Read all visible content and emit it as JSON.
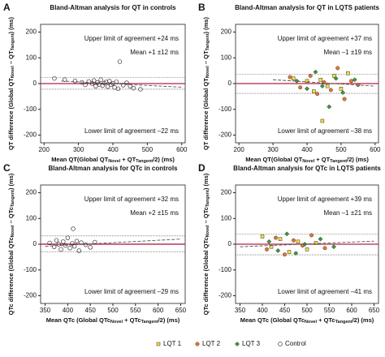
{
  "chart_data": [
    {
      "type": "scatter",
      "letter": "A",
      "title": "Bland-Altman analysis for QT in controls",
      "xlabel_parts": [
        {
          "text": "Mean QT(Global QT",
          "sub": false
        },
        {
          "text": "Novel",
          "sub": true
        },
        {
          "text": " + QT",
          "sub": false
        },
        {
          "text": "Tangent",
          "sub": true
        },
        {
          "text": "/2) (ms)",
          "sub": false
        }
      ],
      "ylabel_parts": [
        {
          "text": "QT difference (Global QT",
          "sub": false
        },
        {
          "text": "Novel",
          "sub": true
        },
        {
          "text": " – QT",
          "sub": false
        },
        {
          "text": "Tangent",
          "sub": true
        },
        {
          "text": ") (ms)",
          "sub": false
        }
      ],
      "xlim": [
        190,
        610
      ],
      "xticks": [
        200,
        300,
        400,
        500,
        600
      ],
      "ylim": [
        -230,
        230
      ],
      "yticks": [
        200,
        100,
        0,
        -100,
        -200
      ],
      "limits": {
        "upper": 24,
        "mean": 1,
        "lower": -22
      },
      "limit_labels": {
        "upper": "Upper limit of agreement +24 ms",
        "mean": "Mean +1 ±12 ms",
        "lower": "Lower limit of agreement –22 ms"
      },
      "regression": {
        "x": [
          250,
          600
        ],
        "y": [
          10,
          -14
        ]
      },
      "series": [
        {
          "name": "Control",
          "color": "#222222",
          "marker": "open-circle",
          "x": [
            230,
            260,
            290,
            310,
            320,
            330,
            340,
            345,
            350,
            355,
            360,
            365,
            370,
            375,
            380,
            385,
            390,
            395,
            400,
            405,
            410,
            415,
            420,
            430,
            440,
            450,
            460,
            480
          ],
          "values": [
            20,
            15,
            10,
            5,
            -5,
            8,
            0,
            12,
            -10,
            4,
            -3,
            15,
            -8,
            2,
            6,
            -12,
            10,
            -4,
            1,
            -15,
            7,
            -20,
            85,
            -6,
            3,
            -10,
            -18,
            -22
          ]
        }
      ]
    },
    {
      "type": "scatter",
      "letter": "B",
      "title": "Bland-Altman analysis for QT in LQTS patients",
      "xlabel_parts": [
        {
          "text": "Mean QT(Global QT",
          "sub": false
        },
        {
          "text": "Novel",
          "sub": true
        },
        {
          "text": " + QT",
          "sub": false
        },
        {
          "text": "Tangent",
          "sub": true
        },
        {
          "text": "/2) (ms)",
          "sub": false
        }
      ],
      "ylabel_parts": [
        {
          "text": "QT difference (Global QT",
          "sub": false
        },
        {
          "text": "Novel",
          "sub": true
        },
        {
          "text": " – QT",
          "sub": false
        },
        {
          "text": "Tangent",
          "sub": true
        },
        {
          "text": ") (ms)",
          "sub": false
        }
      ],
      "xlim": [
        190,
        610
      ],
      "xticks": [
        200,
        300,
        400,
        500,
        600
      ],
      "ylim": [
        -230,
        230
      ],
      "yticks": [
        200,
        100,
        0,
        -100,
        -200
      ],
      "limits": {
        "upper": 37,
        "mean": -1,
        "lower": -38
      },
      "limit_labels": {
        "upper": "Upper limit of agreement +37 ms",
        "mean": "Mean –1 ±19 ms",
        "lower": "Lower limit of agreement –38 ms"
      },
      "regression": {
        "x": [
          300,
          600
        ],
        "y": [
          15,
          -10
        ]
      },
      "series": [
        {
          "name": "LQT 1",
          "color": "#f2e23a",
          "marker": "square",
          "x": [
            360,
            400,
            420,
            440,
            445,
            460,
            480,
            500,
            520
          ],
          "values": [
            20,
            10,
            -30,
            15,
            -145,
            -10,
            30,
            -20,
            40
          ]
        },
        {
          "name": "LQT 2",
          "color": "#e8782a",
          "marker": "circle",
          "x": [
            350,
            380,
            410,
            430,
            450,
            470,
            490,
            510,
            530,
            550
          ],
          "values": [
            25,
            -15,
            30,
            -40,
            5,
            -25,
            60,
            -60,
            10,
            -5
          ]
        },
        {
          "name": "LQT 3",
          "color": "#3a9a3a",
          "marker": "diamond",
          "x": [
            370,
            400,
            425,
            445,
            465,
            485,
            505,
            540
          ],
          "values": [
            10,
            -20,
            45,
            -10,
            -90,
            20,
            -35,
            15
          ]
        }
      ]
    },
    {
      "type": "scatter",
      "letter": "C",
      "title": "Bland-Altman analysis for QTc in controls",
      "xlabel_parts": [
        {
          "text": "Mean QTc (Global QTc",
          "sub": false
        },
        {
          "text": "Novel",
          "sub": true
        },
        {
          "text": " + QTc",
          "sub": false
        },
        {
          "text": "Tangent",
          "sub": true
        },
        {
          "text": "/2) (ms)",
          "sub": false
        }
      ],
      "ylabel_parts": [
        {
          "text": "QTc difference (Global QTc",
          "sub": false
        },
        {
          "text": "Novel",
          "sub": true
        },
        {
          "text": " – QTc",
          "sub": false
        },
        {
          "text": "Tangent",
          "sub": true
        },
        {
          "text": ") (ms)",
          "sub": false
        }
      ],
      "xlim": [
        340,
        660
      ],
      "xticks": [
        350,
        400,
        450,
        500,
        550,
        600,
        650
      ],
      "ylim": [
        -230,
        230
      ],
      "yticks": [
        200,
        100,
        0,
        -100,
        -200
      ],
      "limits": {
        "upper": 32,
        "mean": 2,
        "lower": -29
      },
      "limit_labels": {
        "upper": "Upper limit of agreement +32 ms",
        "mean": "Mean +2 ±15 ms",
        "lower": "Lower limit of agreement –29 ms"
      },
      "regression": {
        "x": [
          350,
          650
        ],
        "y": [
          -8,
          20
        ]
      },
      "series": [
        {
          "name": "Control",
          "color": "#222222",
          "marker": "open-circle",
          "x": [
            360,
            370,
            375,
            380,
            385,
            390,
            395,
            400,
            405,
            410,
            412,
            415,
            420,
            425,
            430,
            440,
            450,
            460
          ],
          "values": [
            5,
            -10,
            15,
            0,
            -20,
            10,
            -5,
            25,
            -15,
            3,
            60,
            -8,
            12,
            -25,
            6,
            -2,
            -12,
            8
          ]
        }
      ]
    },
    {
      "type": "scatter",
      "letter": "D",
      "title": "Bland-Altman analysis for QTc in LQTS patients",
      "xlabel_parts": [
        {
          "text": "Mean QTc (Global QTc",
          "sub": false
        },
        {
          "text": "Novel",
          "sub": true
        },
        {
          "text": " + QTc",
          "sub": false
        },
        {
          "text": "Tangent",
          "sub": true
        },
        {
          "text": "/2) (ms)",
          "sub": false
        }
      ],
      "ylabel_parts": [
        {
          "text": "QTc difference (Global QTc",
          "sub": false
        },
        {
          "text": "Novel",
          "sub": true
        },
        {
          "text": " – QTc",
          "sub": false
        },
        {
          "text": "Tangent",
          "sub": true
        },
        {
          "text": ") (ms)",
          "sub": false
        }
      ],
      "xlim": [
        340,
        660
      ],
      "xticks": [
        350,
        400,
        450,
        500,
        550,
        600,
        650
      ],
      "ylim": [
        -230,
        230
      ],
      "yticks": [
        200,
        100,
        0,
        -100,
        -200
      ],
      "limits": {
        "upper": 39,
        "mean": -1,
        "lower": -41
      },
      "limit_labels": {
        "upper": "Upper limit of agreement +39 ms",
        "mean": "Mean –1 ±21 ms",
        "lower": "Lower limit of agreement –41 ms"
      },
      "regression": {
        "x": [
          350,
          650
        ],
        "y": [
          -10,
          12
        ]
      },
      "series": [
        {
          "name": "LQT 1",
          "color": "#f2e23a",
          "marker": "square",
          "x": [
            400,
            420,
            440,
            460,
            480,
            500,
            520
          ],
          "values": [
            30,
            -10,
            20,
            -30,
            10,
            -20,
            5
          ]
        },
        {
          "name": "LQT 2",
          "color": "#e8782a",
          "marker": "circle",
          "x": [
            410,
            430,
            450,
            470,
            490,
            510,
            540
          ],
          "values": [
            -20,
            25,
            -40,
            15,
            -5,
            35,
            -15
          ]
        },
        {
          "name": "LQT 3",
          "color": "#3a9a3a",
          "marker": "diamond",
          "x": [
            415,
            435,
            455,
            475,
            495,
            530,
            560
          ],
          "values": [
            10,
            -25,
            40,
            -35,
            0,
            20,
            -10
          ]
        }
      ]
    }
  ]
}
